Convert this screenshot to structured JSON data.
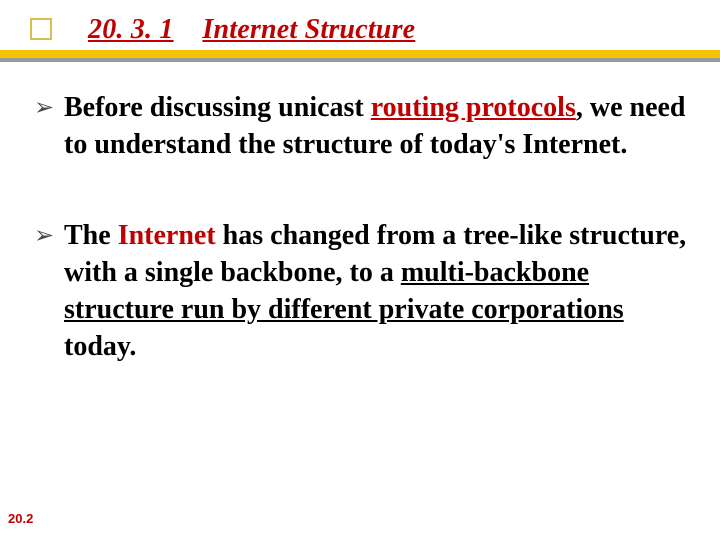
{
  "title": {
    "number": "20. 3. 1",
    "text": "Internet Structure",
    "color": "#c00000",
    "fontsize": 28
  },
  "decor": {
    "square_border_color": "#d6c24a",
    "rule_yellow": "#f3c200",
    "rule_gray": "#9a9a9a"
  },
  "bullets": {
    "arrow_glyph": "➢",
    "arrow_color": "#4a4a4a",
    "items": [
      {
        "pre": "Before discussing unicast ",
        "link": "routing protocols",
        "link_color": "#c00000",
        "post1": ", we need to understand the structure of today's Internet.",
        "red2": "",
        "u2": "",
        "post2": ""
      },
      {
        "pre": "The ",
        "link": "Internet",
        "link_color": "#c00000",
        "post1": " has changed from a tree-like structure, with a single backbone, to a ",
        "red2": "",
        "u2": "multi-backbone structure run by different private corporations ",
        "post2": "today."
      }
    ]
  },
  "footer": {
    "text": "20.2",
    "color": "#c00000",
    "fontsize": 13
  }
}
